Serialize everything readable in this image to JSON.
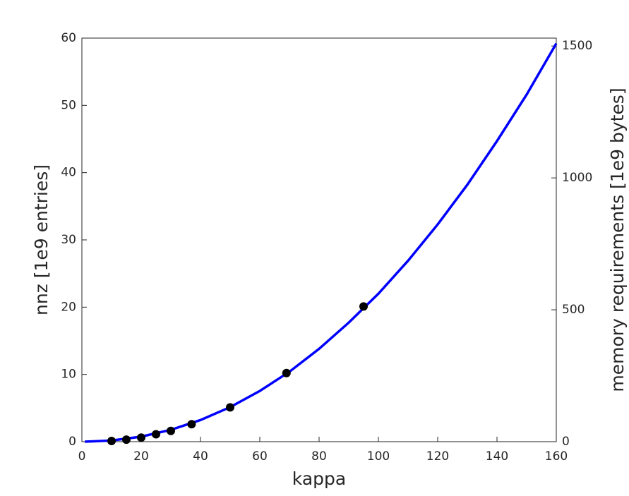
{
  "chart_data": {
    "type": "line",
    "xlabel": "kappa",
    "ylabel": "nnz [1e9 entries]",
    "y2label": "memory requirements [1e9 bytes]",
    "xlim": [
      0,
      160
    ],
    "xticks": [
      0,
      20,
      40,
      60,
      80,
      100,
      120,
      140,
      160
    ],
    "ylim": [
      0,
      60
    ],
    "yticks": [
      0,
      10,
      20,
      30,
      40,
      50,
      60
    ],
    "y2lim": [
      0,
      1530
    ],
    "y2ticks": [
      0,
      500,
      1000,
      1500
    ],
    "series": [
      {
        "type": "line",
        "color": "#0000ff",
        "x": [
          1,
          10,
          20,
          30,
          40,
          50,
          60,
          70,
          80,
          90,
          100,
          110,
          120,
          130,
          140,
          150,
          160
        ],
        "values": [
          0,
          0.17,
          0.75,
          1.76,
          3.22,
          5.13,
          7.54,
          10.4,
          13.8,
          17.7,
          22.0,
          26.9,
          32.3,
          38.2,
          44.7,
          51.6,
          59.2
        ]
      },
      {
        "type": "scatter",
        "color": "#000000",
        "x": [
          10,
          15,
          20,
          25,
          30,
          37,
          50,
          69,
          95
        ],
        "values": [
          0.1,
          0.3,
          0.6,
          1.1,
          1.6,
          2.6,
          5.1,
          10.2,
          20.1
        ]
      }
    ]
  }
}
